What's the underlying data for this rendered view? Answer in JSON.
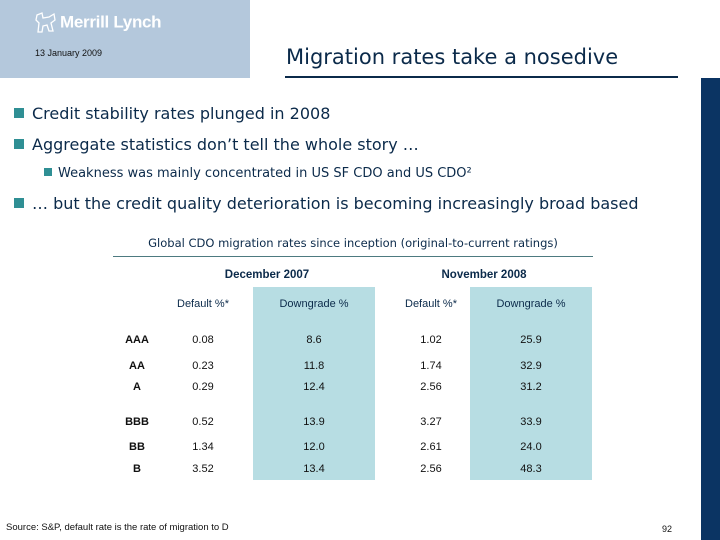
{
  "header": {
    "brand": "Merrill Lynch",
    "date": "13 January 2009",
    "title": "Migration rates take a nosedive"
  },
  "bullets": [
    {
      "text": "Credit stability rates plunged in 2008",
      "level": 1
    },
    {
      "text": "Aggregate statistics don’t tell the whole story …",
      "level": 1
    },
    {
      "text": "Weakness was mainly concentrated in US SF CDO and US CDO²",
      "level": 2
    },
    {
      "text": "… but the credit quality deterioration is becoming increasingly broad based",
      "level": 1
    }
  ],
  "table": {
    "caption": "Global CDO migration rates since inception (original-to-current ratings)",
    "groups": [
      "December 2007",
      "November 2008"
    ],
    "columns": [
      "Default %*",
      "Downgrade %",
      "Default %*",
      "Downgrade %"
    ],
    "rows": [
      {
        "rating": "AAA",
        "values": [
          "0.08",
          "8.6",
          "1.02",
          "25.9"
        ]
      },
      {
        "rating": "AA",
        "values": [
          "0.23",
          "11.8",
          "1.74",
          "32.9"
        ]
      },
      {
        "rating": "A",
        "values": [
          "0.29",
          "12.4",
          "2.56",
          "31.2"
        ]
      },
      {
        "rating": "BBB",
        "values": [
          "0.52",
          "13.9",
          "3.27",
          "33.9"
        ]
      },
      {
        "rating": "BB",
        "values": [
          "1.34",
          "12.0",
          "2.61",
          "24.0"
        ]
      },
      {
        "rating": "B",
        "values": [
          "3.52",
          "13.4",
          "2.56",
          "48.3"
        ]
      }
    ],
    "band_color": "#b7dde3"
  },
  "footer": {
    "source": "Source: S&P, default rate is the rate of migration to D",
    "page": "92"
  }
}
